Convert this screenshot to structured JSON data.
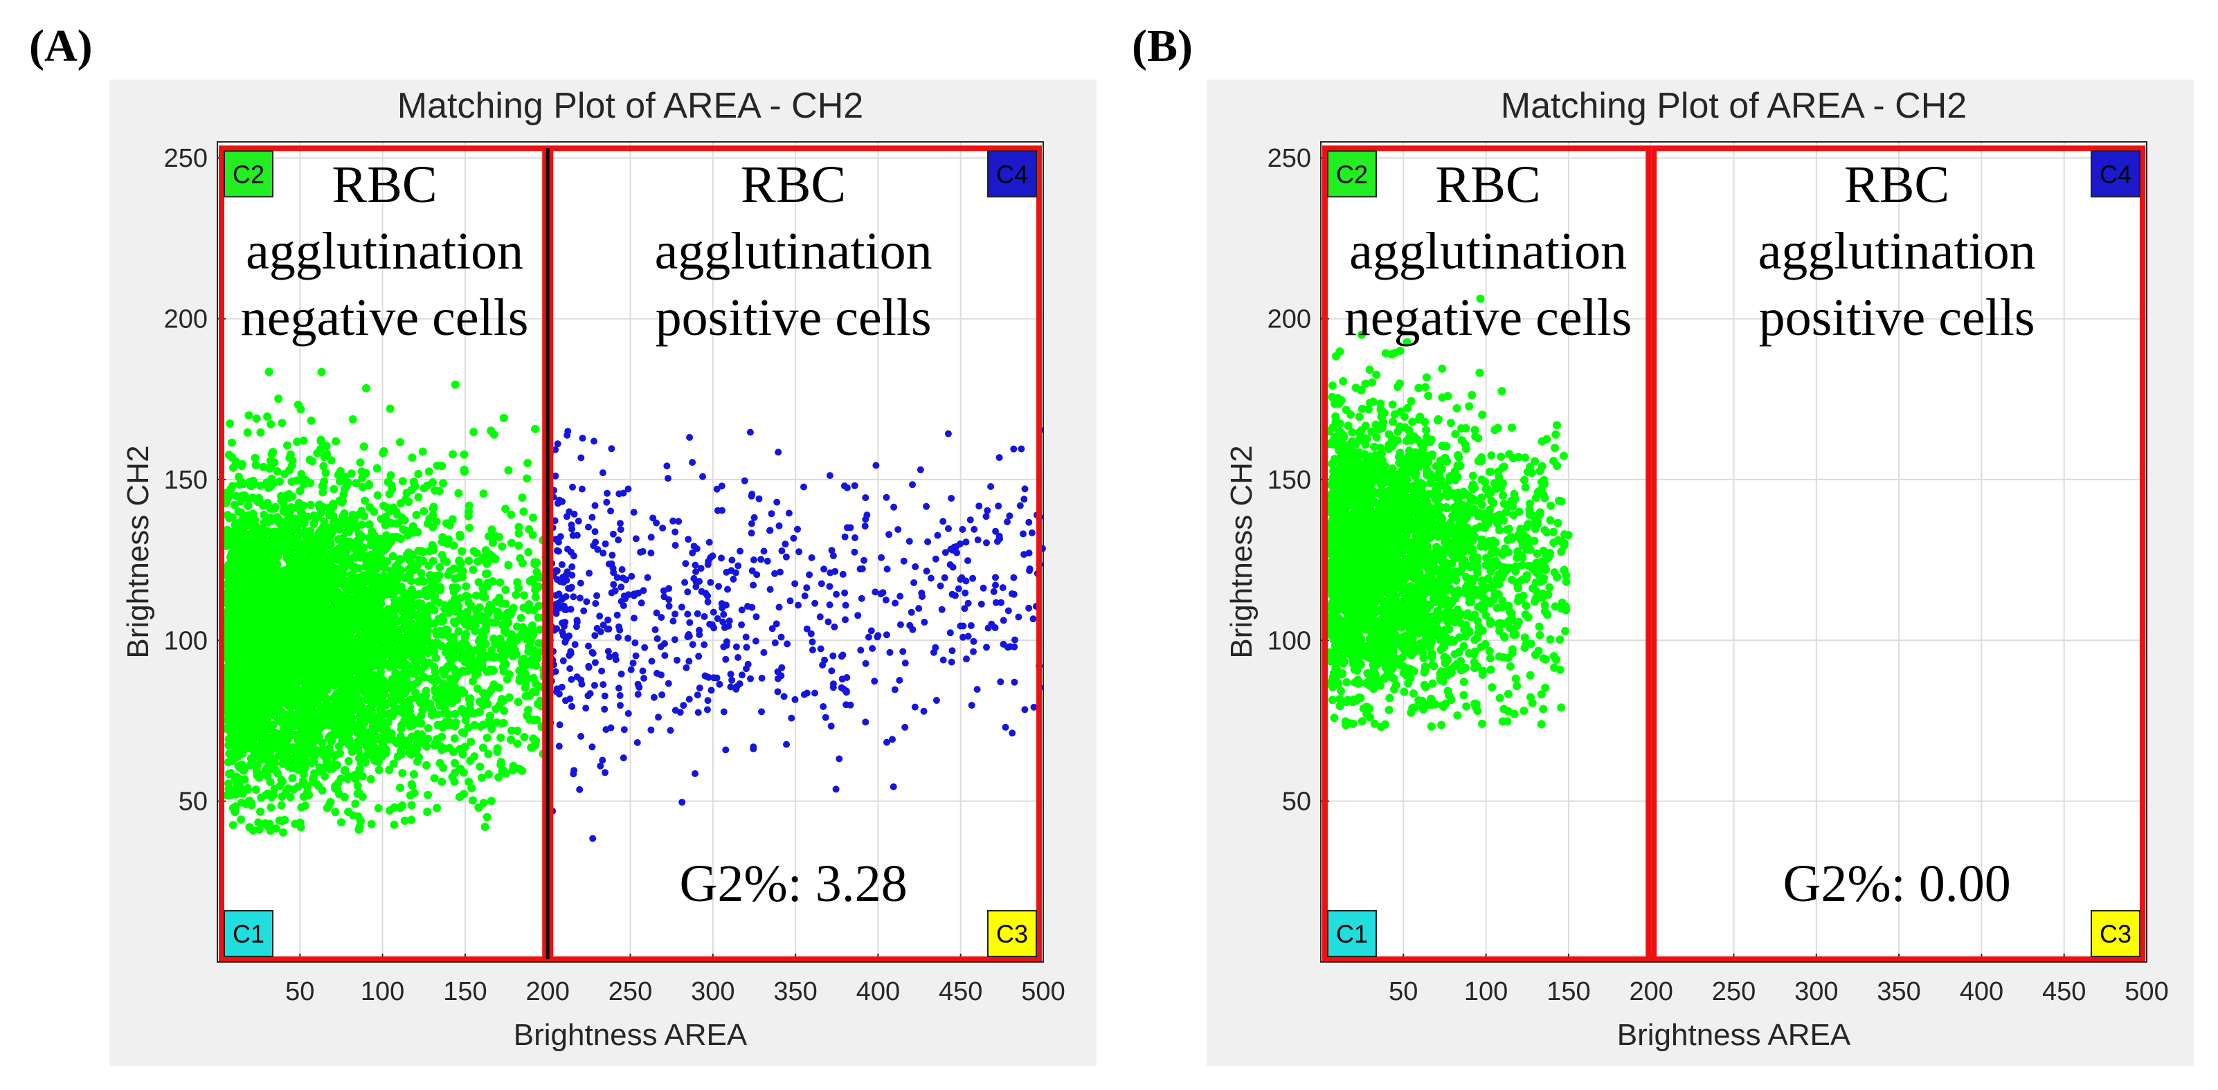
{
  "chart_data": [
    {
      "panel": "(A)",
      "type": "scatter",
      "title": "Matching Plot of AREA - CH2",
      "xlabel": "Brightness AREA",
      "ylabel": "Brightness CH2",
      "xlim": [
        0,
        500
      ],
      "ylim": [
        0,
        255
      ],
      "xticks": [
        50,
        100,
        150,
        200,
        250,
        300,
        350,
        400,
        450,
        500
      ],
      "yticks": [
        50,
        100,
        150,
        200,
        250
      ],
      "grid": true,
      "gates": [
        {
          "label": "C1",
          "color": "#22dddd",
          "corner": "bottom-left"
        },
        {
          "label": "C2",
          "color": "#22ee22",
          "corner": "top-left"
        },
        {
          "label": "C3",
          "color": "#ffff00",
          "corner": "bottom-right"
        },
        {
          "label": "C4",
          "color": "#1a1acc",
          "corner": "top-right"
        }
      ],
      "gate_divider_x": 200,
      "annotations": {
        "left": [
          "RBC",
          "agglutination",
          "negative cells"
        ],
        "right": [
          "RBC",
          "agglutination",
          "positive cells"
        ],
        "g2": "G2%: 3.28"
      },
      "series": [
        {
          "name": "agglutination negative cells",
          "color": "#00ff00",
          "x_range": [
            5,
            200
          ],
          "y_range": [
            40,
            185
          ],
          "center": [
            35,
            100
          ],
          "count": 5200
        },
        {
          "name": "agglutination positive cells",
          "color": "#1515e0",
          "x_range": [
            200,
            500
          ],
          "y_range": [
            38,
            168
          ],
          "center": [
            250,
            110
          ],
          "count": 700
        }
      ]
    },
    {
      "panel": "(B)",
      "type": "scatter",
      "title": "Matching Plot of AREA - CH2",
      "xlabel": "Brightness AREA",
      "ylabel": "Brightness CH2",
      "xlim": [
        0,
        500
      ],
      "ylim": [
        0,
        255
      ],
      "xticks": [
        50,
        100,
        150,
        200,
        250,
        300,
        350,
        400,
        450,
        500
      ],
      "yticks": [
        50,
        100,
        150,
        200,
        250
      ],
      "grid": true,
      "gates": [
        {
          "label": "C1",
          "color": "#22dddd",
          "corner": "bottom-left"
        },
        {
          "label": "C2",
          "color": "#22ee22",
          "corner": "top-left"
        },
        {
          "label": "C3",
          "color": "#ffff00",
          "corner": "bottom-right"
        },
        {
          "label": "C4",
          "color": "#1a1acc",
          "corner": "top-right"
        }
      ],
      "gate_divider_x": 200,
      "annotations": {
        "left": [
          "RBC",
          "agglutination",
          "negative cells"
        ],
        "right": [
          "RBC",
          "agglutination",
          "positive cells"
        ],
        "g2": "G2%: 0.00"
      },
      "series": [
        {
          "name": "agglutination negative cells",
          "color": "#00ff00",
          "x_range": [
            5,
            150
          ],
          "y_range": [
            73,
            207
          ],
          "center": [
            30,
            125
          ],
          "count": 3000
        }
      ]
    }
  ]
}
